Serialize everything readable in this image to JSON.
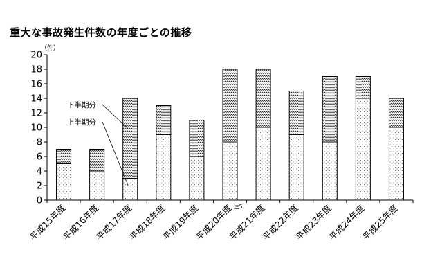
{
  "chart_data": {
    "type": "bar",
    "stacked": true,
    "title": "重大な事故発生件数の年度ごとの推移",
    "unit_label": "（件）",
    "categories": [
      "平成15年度",
      "平成16年度",
      "平成17年度",
      "平成18年度",
      "平成19年度",
      "平成20年度",
      "平成21年度",
      "平成22年度",
      "平成23年度",
      "平成24年度",
      "平成25年度"
    ],
    "series": [
      {
        "name": "上半期分",
        "values": [
          5,
          4,
          3,
          9,
          6,
          8,
          10,
          9,
          8,
          14,
          10
        ],
        "pattern": "dots"
      },
      {
        "name": "下半期分",
        "values": [
          2,
          3,
          11,
          4,
          5,
          10,
          8,
          6,
          9,
          3,
          4
        ],
        "pattern": "zigzag"
      }
    ],
    "totals": [
      7,
      7,
      14,
      13,
      11,
      18,
      18,
      15,
      17,
      17,
      14
    ],
    "ylim": [
      0,
      20
    ],
    "yticks": [
      0,
      2,
      4,
      6,
      8,
      10,
      12,
      14,
      16,
      18,
      20
    ],
    "annotations": [
      {
        "text": "注5",
        "category": "平成20年度"
      }
    ],
    "grid": false,
    "legend": "callout labels inside plot area (left)"
  }
}
